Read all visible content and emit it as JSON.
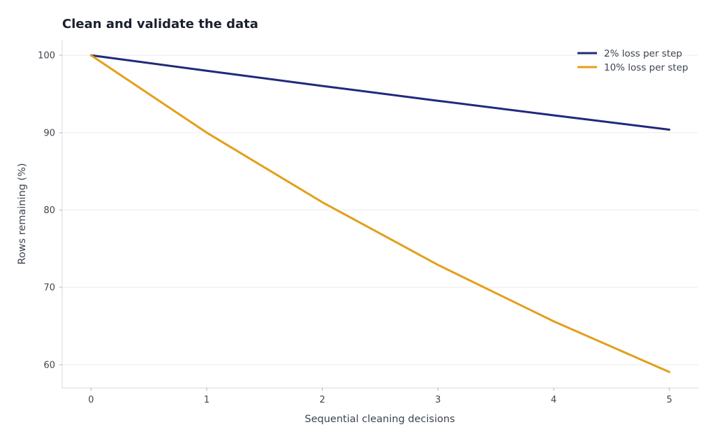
{
  "chart_data": {
    "type": "line",
    "title": "Clean and validate the data",
    "xlabel": "Sequential cleaning decisions",
    "ylabel": "Rows remaining (%)",
    "x": [
      0,
      1,
      2,
      3,
      4,
      5
    ],
    "xlim": [
      -0.25,
      5.25
    ],
    "ylim": [
      57,
      102
    ],
    "xticks": [
      0,
      1,
      2,
      3,
      4,
      5
    ],
    "yticks": [
      60,
      70,
      80,
      90,
      100
    ],
    "grid": "horizontal",
    "legend_position": "top-right",
    "series": [
      {
        "name": "2% loss per step",
        "color": "#1f2a7a",
        "values": [
          100,
          98,
          96.04,
          94.12,
          92.24,
          90.39
        ]
      },
      {
        "name": "10% loss per step",
        "color": "#e39f1a",
        "values": [
          100,
          90,
          81,
          72.9,
          65.61,
          59.05
        ]
      }
    ]
  }
}
